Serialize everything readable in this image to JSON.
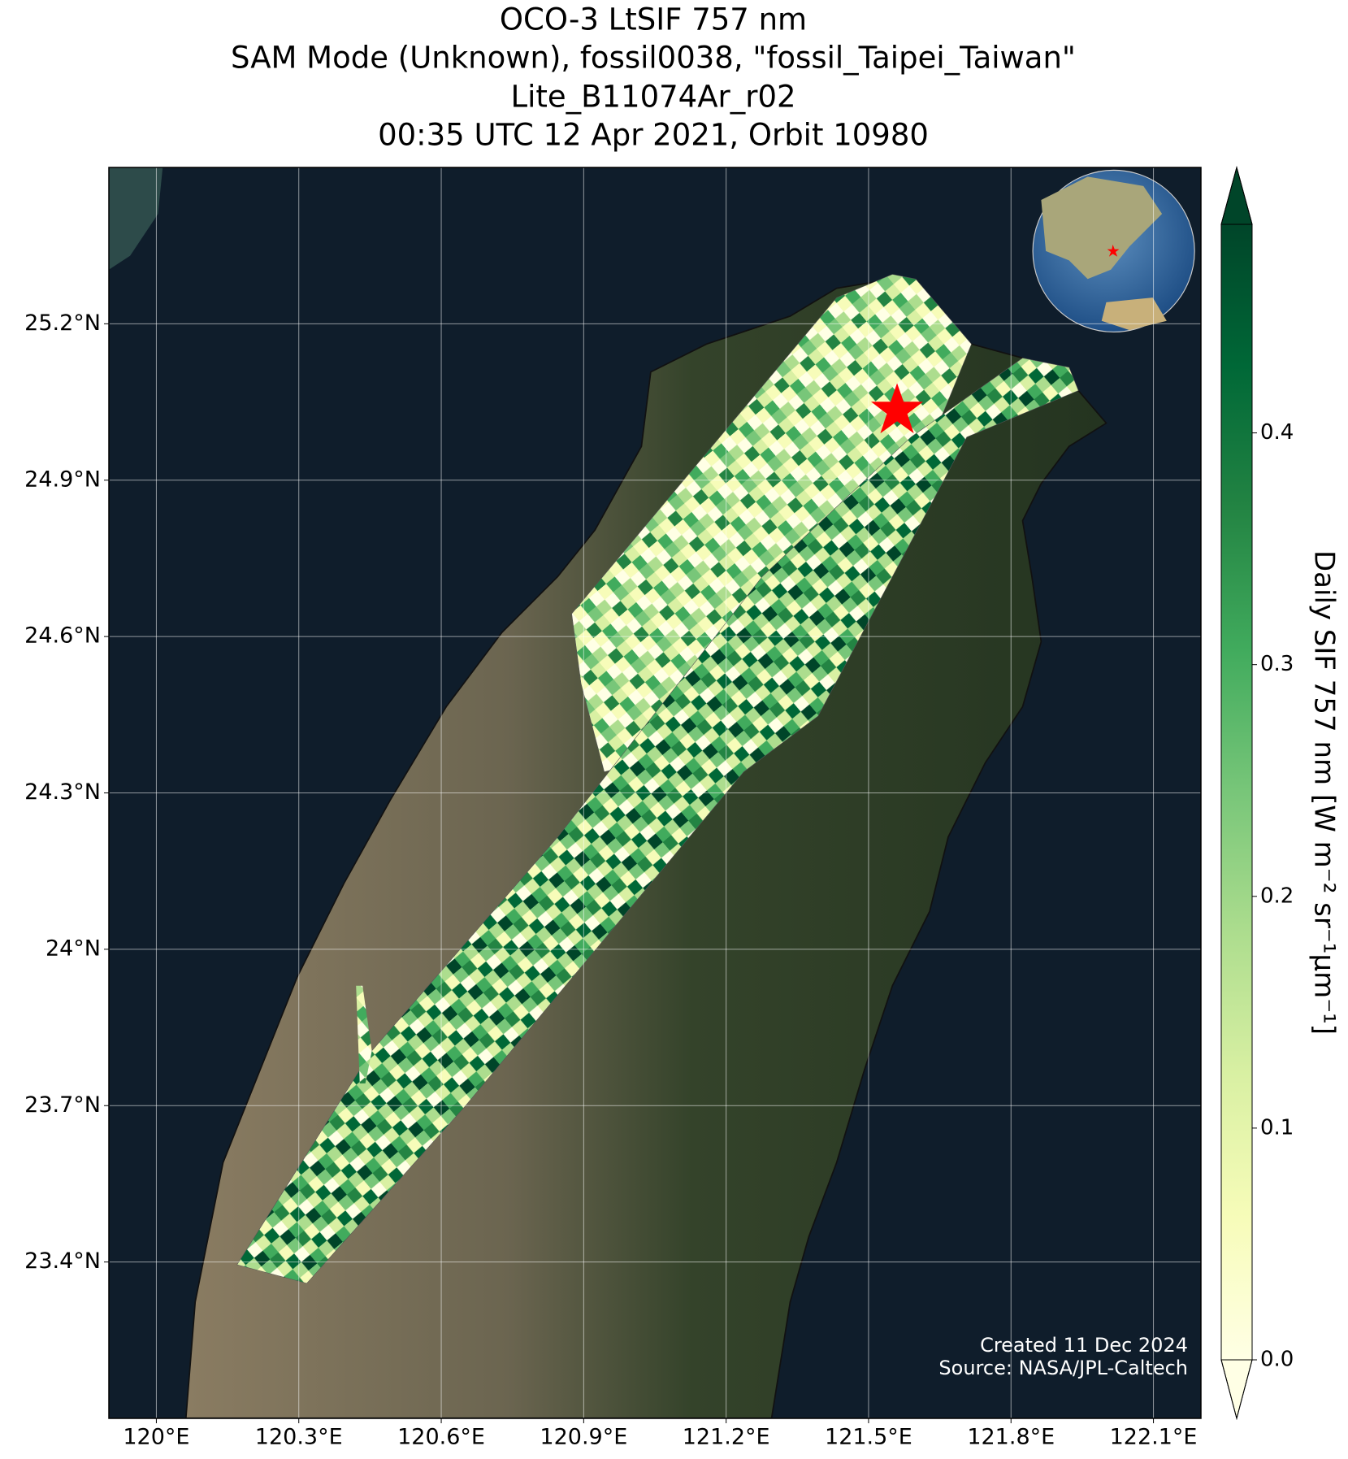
{
  "chart_data": {
    "type": "map",
    "title": [
      "OCO-3 LtSIF 757 nm",
      "SAM Mode (Unknown), fossil0038, \"fossil_Taipei_Taiwan\"",
      "Lite_B11074Ar_r02",
      "00:35 UTC 12 Apr 2021, Orbit 10980"
    ],
    "xlim": [
      119.9,
      122.2
    ],
    "ylim": [
      23.1,
      25.5
    ],
    "xticks": [
      {
        "value": 120,
        "label": "120°E"
      },
      {
        "value": 120.3,
        "label": "120.3°E"
      },
      {
        "value": 120.6,
        "label": "120.6°E"
      },
      {
        "value": 120.9,
        "label": "120.9°E"
      },
      {
        "value": 121.2,
        "label": "121.2°E"
      },
      {
        "value": 121.5,
        "label": "121.5°E"
      },
      {
        "value": 121.8,
        "label": "121.8°E"
      },
      {
        "value": 122.1,
        "label": "122.1°E"
      }
    ],
    "yticks": [
      {
        "value": 23.4,
        "label": "23.4°N"
      },
      {
        "value": 23.7,
        "label": "23.7°N"
      },
      {
        "value": 24,
        "label": "24°N"
      },
      {
        "value": 24.3,
        "label": "24.3°N"
      },
      {
        "value": 24.6,
        "label": "24.6°N"
      },
      {
        "value": 24.9,
        "label": "24.9°N"
      },
      {
        "value": 25.2,
        "label": "25.2°N"
      }
    ],
    "grid": true,
    "colorbar": {
      "label": "Daily SIF 757 nm [W m⁻² sr⁻¹μm⁻¹]",
      "lim": [
        0,
        0.49
      ],
      "ticks": [
        {
          "value": 0,
          "label": "0.0"
        },
        0.1,
        0.2,
        0.3,
        0.4
      ],
      "colors": [
        "#ffffe5",
        "#f7fcb9",
        "#d9f0a3",
        "#addd8e",
        "#78c679",
        "#41ab5d",
        "#238443",
        "#006837",
        "#004529"
      ]
    },
    "credits": [
      "Created 11 Dec 2024",
      "Source: NASA/JPL-Caltech"
    ]
  }
}
